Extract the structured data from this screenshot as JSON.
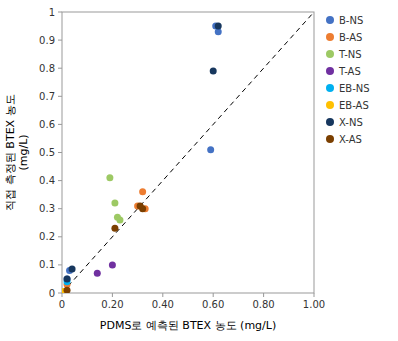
{
  "chart_data": {
    "type": "scatter",
    "xlabel": "PDMS로 예측된 BTEX 농도 (mg/L)",
    "ylabel": "직접 측정된 BTEX 농도\n(mg/L)",
    "xlim": [
      0,
      1.0
    ],
    "ylim": [
      0,
      1.0
    ],
    "xticks": [
      0,
      {
        "value": 0.2,
        "label": "0.20"
      },
      {
        "value": 0.4,
        "label": "0.40"
      },
      {
        "value": 0.6,
        "label": "0.60"
      },
      {
        "value": 0.8,
        "label": "0.80"
      },
      {
        "value": 1.0,
        "label": "1.00"
      }
    ],
    "yticks": [
      0,
      0.1,
      0.2,
      0.3,
      0.4,
      0.5,
      0.6,
      0.7,
      0.8,
      0.9,
      1
    ],
    "grid": false,
    "legend": "right",
    "marker": "circle",
    "series": [
      {
        "name": "B-NS",
        "color": "#4472C4",
        "x": [
          0.02,
          0.03,
          0.59,
          0.61,
          0.62
        ],
        "values": [
          0.05,
          0.08,
          0.51,
          0.95,
          0.93
        ]
      },
      {
        "name": "B-AS",
        "color": "#ED7D31",
        "x": [
          0.02,
          0.3,
          0.32,
          0.33
        ],
        "values": [
          0.03,
          0.31,
          0.36,
          0.3
        ]
      },
      {
        "name": "T-NS",
        "color": "#9DC964",
        "x": [
          0.19,
          0.21,
          0.22,
          0.23
        ],
        "values": [
          0.41,
          0.32,
          0.27,
          0.26
        ]
      },
      {
        "name": "T-AS",
        "color": "#7030A0",
        "x": [
          0.14,
          0.2
        ],
        "values": [
          0.07,
          0.1
        ]
      },
      {
        "name": "EB-NS",
        "color": "#00B0F0",
        "x": [
          0.02
        ],
        "values": [
          0.04
        ]
      },
      {
        "name": "EB-AS",
        "color": "#FFC000",
        "x": [
          0.005
        ],
        "values": [
          0.005
        ]
      },
      {
        "name": "X-NS",
        "color": "#17375E",
        "x": [
          0.02,
          0.04,
          0.6,
          0.62
        ],
        "values": [
          0.05,
          0.085,
          0.79,
          0.95
        ]
      },
      {
        "name": "X-AS",
        "color": "#7B3F00",
        "x": [
          0.02,
          0.21,
          0.31,
          0.32
        ],
        "values": [
          0.01,
          0.23,
          0.31,
          0.3
        ]
      }
    ],
    "diagonal": {
      "x": [
        0,
        1.0
      ],
      "y": [
        0,
        1.0
      ]
    }
  }
}
